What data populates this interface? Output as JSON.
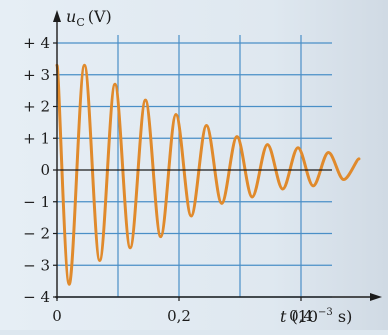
{
  "chart_data": {
    "type": "line",
    "title": "",
    "ylabel_symbol": "u",
    "ylabel_subscript": "C",
    "ylabel_unit": "(V)",
    "xlabel_symbol": "t",
    "xlabel_unit_prefix": "(10",
    "xlabel_unit_exponent": "−3",
    "xlabel_unit_suffix": " s)",
    "xlim": [
      0,
      0.5
    ],
    "ylim": [
      -4,
      4
    ],
    "grid": true,
    "x_ticks": [
      {
        "value": 0,
        "label": "0"
      },
      {
        "value": 0.2,
        "label": "0,2"
      },
      {
        "value": 0.4,
        "label": "0,4"
      }
    ],
    "y_ticks": [
      {
        "value": 4,
        "label": "+ 4"
      },
      {
        "value": 3,
        "label": "+ 3"
      },
      {
        "value": 2,
        "label": "+ 2"
      },
      {
        "value": 1,
        "label": "+ 1"
      },
      {
        "value": 0,
        "label": "0"
      },
      {
        "value": -1,
        "label": "− 1"
      },
      {
        "value": -2,
        "label": "− 2"
      },
      {
        "value": -3,
        "label": "− 3"
      },
      {
        "value": -4,
        "label": "− 4"
      }
    ],
    "series": [
      {
        "color": "#e08a2c",
        "x": [
          0,
          0.02,
          0.045,
          0.07,
          0.095,
          0.12,
          0.145,
          0.17,
          0.195,
          0.22,
          0.245,
          0.27,
          0.295,
          0.32,
          0.345,
          0.37,
          0.395,
          0.42,
          0.445,
          0.47,
          0.495
        ],
        "y": [
          3.3,
          -3.6,
          3.3,
          -2.85,
          2.7,
          -2.45,
          2.2,
          -2.1,
          1.75,
          -1.45,
          1.4,
          -1.05,
          1.05,
          -0.85,
          0.8,
          -0.6,
          0.7,
          -0.5,
          0.55,
          -0.3,
          0.35
        ]
      }
    ]
  },
  "colors": {
    "grid": "#4a8fc7",
    "axis": "#1c1c1c",
    "curve": "#e08a2c"
  }
}
